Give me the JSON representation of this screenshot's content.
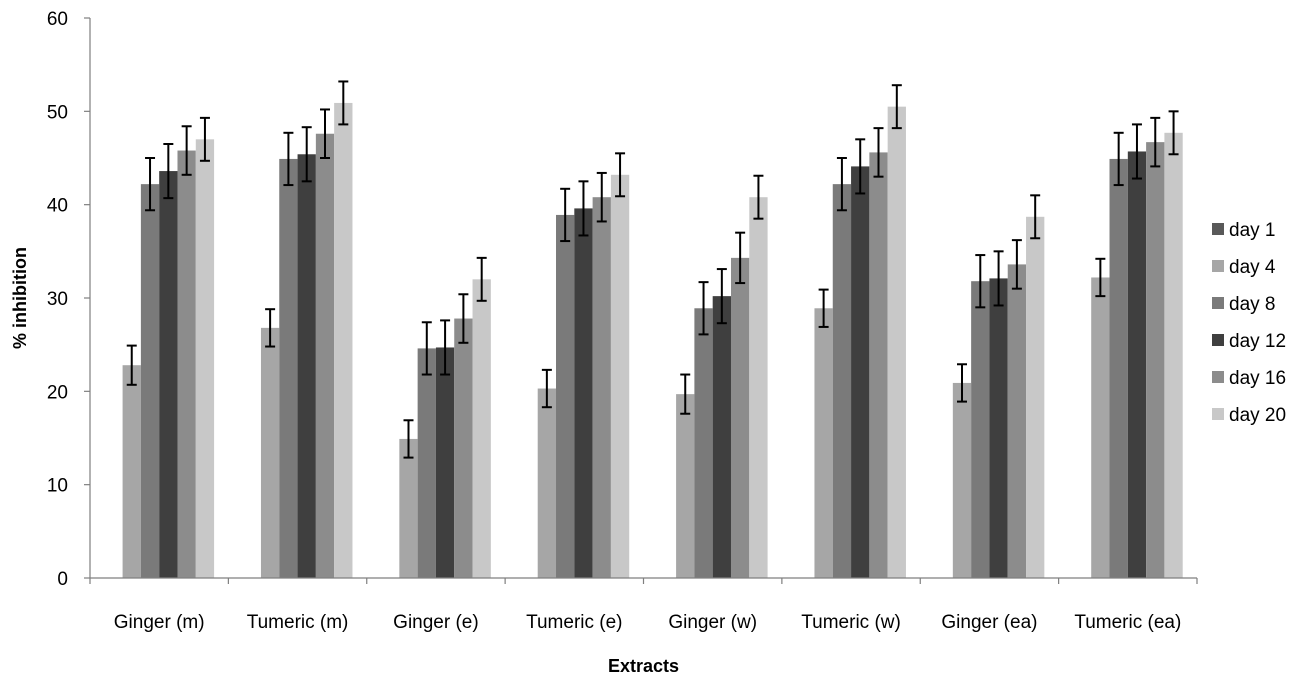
{
  "chart_data": {
    "type": "bar",
    "title": "",
    "xlabel": "Extracts",
    "ylabel": "% inhibition",
    "ylim": [
      0,
      60
    ],
    "yticks": [
      0,
      10,
      20,
      30,
      40,
      50,
      60
    ],
    "grid": false,
    "legend_position": "right",
    "categories": [
      "Ginger (m)",
      "Tumeric (m)",
      "Ginger (e)",
      "Tumeric (e)",
      "Ginger (w)",
      "Tumeric (w)",
      "Ginger (ea)",
      "Tumeric (ea)"
    ],
    "series": [
      {
        "name": "day 1",
        "color": "#595959",
        "values": [
          0,
          0,
          0,
          0,
          0,
          0,
          0,
          0
        ],
        "errors": [
          0,
          0,
          0,
          0,
          0,
          0,
          0,
          0
        ]
      },
      {
        "name": "day 4",
        "color": "#a6a6a6",
        "values": [
          22.8,
          26.8,
          14.9,
          20.3,
          19.7,
          28.9,
          20.9,
          32.2
        ],
        "errors": [
          2.1,
          2.0,
          2.0,
          2.0,
          2.1,
          2.0,
          2.0,
          2.0
        ]
      },
      {
        "name": "day 8",
        "color": "#7a7a7a",
        "values": [
          42.2,
          44.9,
          24.6,
          38.9,
          28.9,
          42.2,
          31.8,
          44.9
        ],
        "errors": [
          2.8,
          2.8,
          2.8,
          2.8,
          2.8,
          2.8,
          2.8,
          2.8
        ]
      },
      {
        "name": "day 12",
        "color": "#3f3f3f",
        "values": [
          43.6,
          45.4,
          24.7,
          39.6,
          30.2,
          44.1,
          32.1,
          45.7
        ],
        "errors": [
          2.9,
          2.9,
          2.9,
          2.9,
          2.9,
          2.9,
          2.9,
          2.9
        ]
      },
      {
        "name": "day 16",
        "color": "#8c8c8c",
        "values": [
          45.8,
          47.6,
          27.8,
          40.8,
          34.3,
          45.6,
          33.6,
          46.7
        ],
        "errors": [
          2.6,
          2.6,
          2.6,
          2.6,
          2.7,
          2.6,
          2.6,
          2.6
        ]
      },
      {
        "name": "day 20",
        "color": "#c8c8c8",
        "values": [
          47.0,
          50.9,
          32.0,
          43.2,
          40.8,
          50.5,
          38.7,
          47.7
        ],
        "errors": [
          2.3,
          2.3,
          2.3,
          2.3,
          2.3,
          2.3,
          2.3,
          2.3
        ]
      }
    ]
  }
}
